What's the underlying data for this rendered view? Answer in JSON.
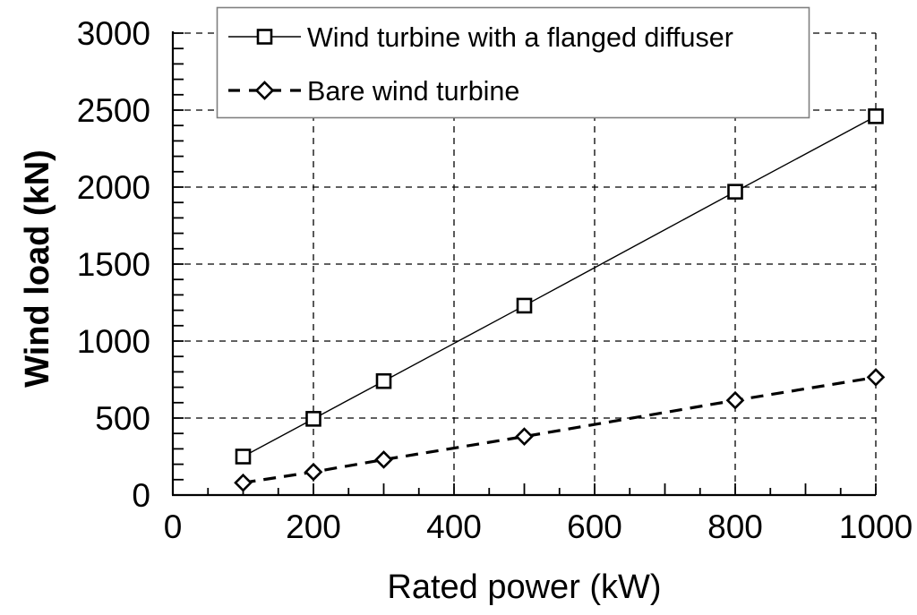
{
  "figure": {
    "background_color": "#ffffff",
    "foreground_color": "#000000",
    "legend_border_color": "#808080"
  },
  "chart_data": {
    "type": "line",
    "title": "",
    "xlabel": "Rated power (kW)",
    "ylabel": "Wind load (kN)",
    "xlim": [
      0,
      1000
    ],
    "ylim": [
      0,
      3000
    ],
    "x_major_ticks": [
      0,
      200,
      400,
      600,
      800,
      1000
    ],
    "y_major_ticks": [
      0,
      500,
      1000,
      1500,
      2000,
      2500,
      3000
    ],
    "x_minor_step": 50,
    "y_minor_step": 100,
    "grid": true,
    "grid_style": "dashed",
    "legend_position": "top-inside",
    "series": [
      {
        "name": "Wind turbine with a flanged diffuser",
        "marker": "square",
        "line_style": "solid",
        "color": "#000000",
        "x": [
          100,
          200,
          300,
          500,
          800,
          1000
        ],
        "y": [
          250,
          495,
          740,
          1230,
          1970,
          2460
        ]
      },
      {
        "name": "Bare wind turbine",
        "marker": "diamond",
        "line_style": "dashed",
        "color": "#000000",
        "x": [
          100,
          200,
          300,
          500,
          800,
          1000
        ],
        "y": [
          80,
          150,
          230,
          380,
          615,
          765
        ]
      }
    ]
  }
}
